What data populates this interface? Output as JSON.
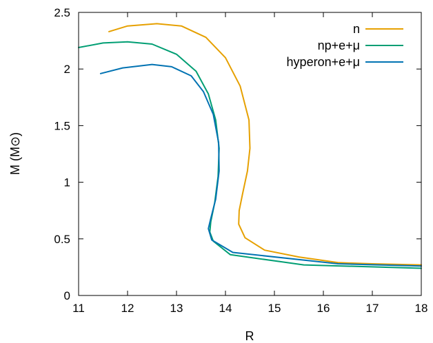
{
  "chart_data": {
    "type": "line",
    "title": "",
    "xlabel": "R",
    "ylabel": "M (M⊙)",
    "xlim": [
      11,
      18
    ],
    "ylim": [
      0,
      2.5
    ],
    "xticks": [
      "11",
      "12",
      "13",
      "14",
      "15",
      "16",
      "17",
      "18"
    ],
    "yticks": [
      "0",
      "0.5",
      "1",
      "1.5",
      "2",
      "2.5"
    ],
    "grid": false,
    "legend_position": "top-right",
    "series": [
      {
        "name": "n",
        "color": "#e6a000",
        "points": [
          [
            11.62,
            2.33
          ],
          [
            12.0,
            2.38
          ],
          [
            12.6,
            2.4
          ],
          [
            13.1,
            2.38
          ],
          [
            13.6,
            2.28
          ],
          [
            14.0,
            2.1
          ],
          [
            14.3,
            1.85
          ],
          [
            14.48,
            1.55
          ],
          [
            14.5,
            1.3
          ],
          [
            14.45,
            1.1
          ],
          [
            14.35,
            0.9
          ],
          [
            14.28,
            0.75
          ],
          [
            14.27,
            0.63
          ],
          [
            14.4,
            0.51
          ],
          [
            14.8,
            0.4
          ],
          [
            15.5,
            0.34
          ],
          [
            16.3,
            0.29
          ],
          [
            17.0,
            0.28
          ],
          [
            18.0,
            0.27
          ]
        ]
      },
      {
        "name": "np+e+μ",
        "color": "#009e73",
        "points": [
          [
            11.0,
            2.19
          ],
          [
            11.5,
            2.23
          ],
          [
            12.0,
            2.24
          ],
          [
            12.5,
            2.22
          ],
          [
            13.0,
            2.13
          ],
          [
            13.4,
            1.98
          ],
          [
            13.65,
            1.78
          ],
          [
            13.8,
            1.55
          ],
          [
            13.87,
            1.3
          ],
          [
            13.85,
            1.05
          ],
          [
            13.78,
            0.82
          ],
          [
            13.7,
            0.65
          ],
          [
            13.68,
            0.56
          ],
          [
            13.75,
            0.48
          ],
          [
            14.1,
            0.36
          ],
          [
            15.6,
            0.27
          ],
          [
            18.0,
            0.24
          ]
        ]
      },
      {
        "name": "hyperon+e+μ",
        "color": "#0072b2",
        "points": [
          [
            11.45,
            1.96
          ],
          [
            11.9,
            2.01
          ],
          [
            12.5,
            2.04
          ],
          [
            12.9,
            2.02
          ],
          [
            13.3,
            1.94
          ],
          [
            13.55,
            1.8
          ],
          [
            13.75,
            1.6
          ],
          [
            13.86,
            1.35
          ],
          [
            13.87,
            1.1
          ],
          [
            13.8,
            0.85
          ],
          [
            13.7,
            0.68
          ],
          [
            13.65,
            0.59
          ],
          [
            13.72,
            0.49
          ],
          [
            14.15,
            0.38
          ],
          [
            16.3,
            0.28
          ],
          [
            18.0,
            0.26
          ]
        ]
      }
    ]
  }
}
